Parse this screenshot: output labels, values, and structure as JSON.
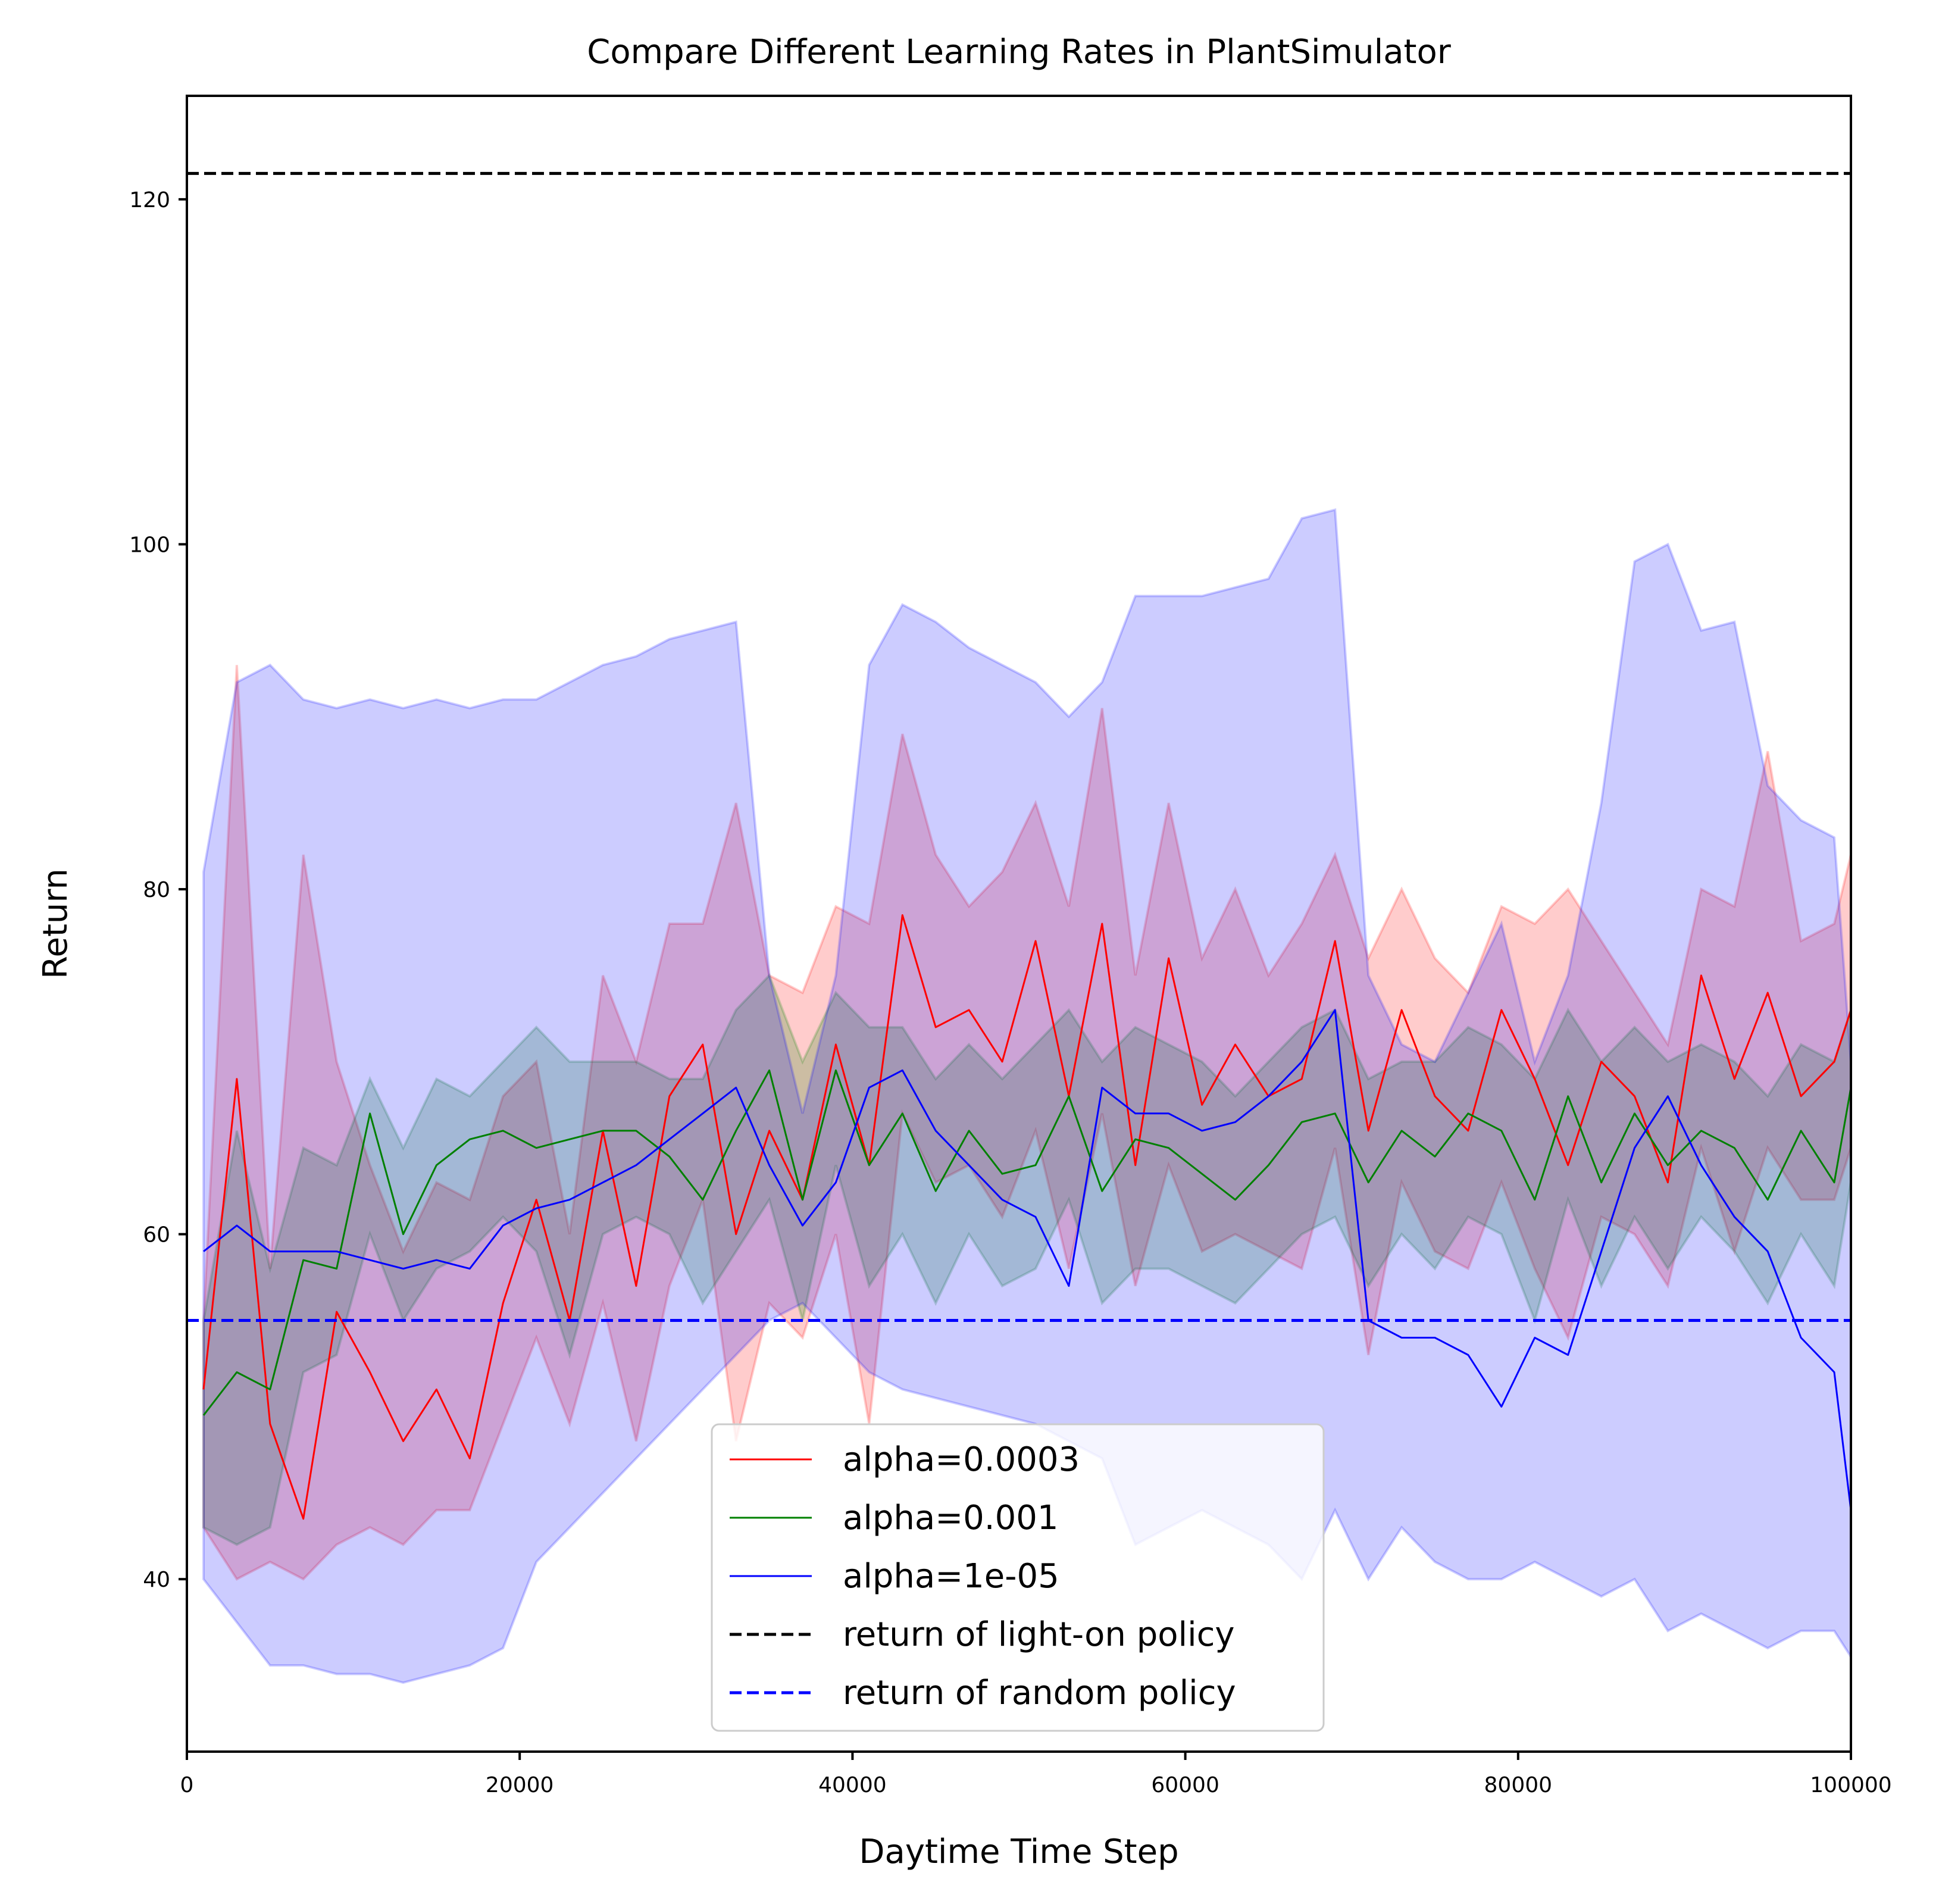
{
  "chart_data": {
    "type": "line",
    "title": "Compare Different Learning Rates in PlantSimulator",
    "xlabel": "Daytime Time Step",
    "ylabel": "Return",
    "xlim": [
      0,
      100000
    ],
    "ylim": [
      30,
      126
    ],
    "x_ticks": [
      0,
      20000,
      40000,
      60000,
      80000,
      100000
    ],
    "x_tick_labels": [
      "0",
      "20000",
      "40000",
      "60000",
      "80000",
      "100000"
    ],
    "y_ticks": [
      40,
      60,
      80,
      100,
      120
    ],
    "y_tick_labels": [
      "40",
      "60",
      "80",
      "100",
      "120"
    ],
    "grid": false,
    "legend_position": "lower center",
    "x": [
      1000,
      3000,
      5000,
      7000,
      9000,
      11000,
      13000,
      15000,
      17000,
      19000,
      21000,
      23000,
      25000,
      27000,
      29000,
      31000,
      33000,
      35000,
      37000,
      39000,
      41000,
      43000,
      45000,
      47000,
      49000,
      51000,
      53000,
      55000,
      57000,
      59000,
      61000,
      63000,
      65000,
      67000,
      69000,
      71000,
      73000,
      75000,
      77000,
      79000,
      81000,
      83000,
      85000,
      87000,
      89000,
      91000,
      93000,
      95000,
      97000,
      99000,
      100000
    ],
    "series": [
      {
        "name": "alpha=0.0003",
        "color": "#ff0000",
        "values": [
          51,
          69,
          49,
          43.5,
          55.5,
          52,
          48,
          51,
          47,
          56,
          62,
          55,
          66,
          57,
          68,
          71,
          60,
          66,
          62,
          71,
          64,
          78.5,
          72,
          73,
          70,
          77,
          68,
          78,
          64,
          76,
          67.5,
          71,
          68,
          69,
          77,
          66,
          73,
          68,
          66,
          73,
          69,
          64,
          70,
          68,
          63,
          75,
          69,
          74,
          68,
          70,
          73
        ],
        "upper": [
          55,
          93,
          58,
          82,
          70,
          64,
          59,
          63,
          62,
          68,
          70,
          60,
          75,
          70,
          78,
          78,
          85,
          75,
          74,
          79,
          78,
          89,
          82,
          79,
          81,
          85,
          79,
          90.5,
          75,
          85,
          76,
          80,
          75,
          78,
          82,
          76,
          80,
          76,
          74,
          79,
          78,
          80,
          77,
          74,
          71,
          80,
          79,
          88,
          77,
          78,
          82
        ],
        "lower": [
          43,
          40,
          41,
          40,
          42,
          43,
          42,
          44,
          44,
          49,
          54,
          49,
          56,
          48,
          57,
          62,
          48,
          56,
          54,
          60,
          49,
          67,
          63,
          64,
          61,
          66,
          58,
          67,
          57,
          64,
          59,
          60,
          59,
          58,
          65,
          53,
          63,
          59,
          58,
          63,
          58,
          54,
          61,
          60,
          57,
          65,
          59,
          65,
          62,
          62,
          65
        ]
      },
      {
        "name": "alpha=0.001",
        "color": "#008000",
        "values": [
          49.5,
          52,
          51,
          58.5,
          58,
          67,
          60,
          64,
          65.5,
          66,
          65,
          65.5,
          66,
          66,
          64.5,
          62,
          66,
          69.5,
          62,
          69.5,
          64,
          67,
          62.5,
          66,
          63.5,
          64,
          68,
          62.5,
          65.5,
          65,
          63.5,
          62,
          64,
          66.5,
          67,
          63,
          66,
          64.5,
          67,
          66,
          62,
          68,
          63,
          67,
          64,
          66,
          65,
          62,
          66,
          63,
          68.5
        ],
        "upper": [
          55,
          66,
          58,
          65,
          64,
          69,
          65,
          69,
          68,
          70,
          72,
          70,
          70,
          70,
          69,
          69,
          73,
          75,
          70,
          74,
          72,
          72,
          69,
          71,
          69,
          71,
          73,
          70,
          72,
          71,
          70,
          68,
          70,
          72,
          73,
          69,
          70,
          70,
          72,
          71,
          69,
          73,
          70,
          72,
          70,
          71,
          70,
          68,
          71,
          70,
          73
        ],
        "lower": [
          43,
          42,
          43,
          52,
          53,
          60,
          55,
          58,
          59,
          61,
          59,
          53,
          60,
          61,
          60,
          56,
          59,
          62,
          55,
          64,
          57,
          60,
          56,
          60,
          57,
          58,
          62,
          56,
          58,
          58,
          57,
          56,
          58,
          60,
          61,
          57,
          60,
          58,
          61,
          60,
          55,
          62,
          57,
          61,
          58,
          61,
          59,
          56,
          60,
          57,
          63
        ]
      },
      {
        "name": "alpha=1e-05",
        "color": "#0000ff",
        "values": [
          59,
          60.5,
          59,
          59,
          59,
          58.5,
          58,
          58.5,
          58,
          60.5,
          61.5,
          62,
          63,
          64,
          65.5,
          67,
          68.5,
          64,
          60.5,
          63,
          68.5,
          69.5,
          66,
          64,
          62,
          61,
          57,
          68.5,
          67,
          67,
          66,
          66.5,
          68,
          70,
          73,
          55,
          54,
          54,
          53,
          50,
          54,
          53,
          59,
          65,
          68,
          64,
          61,
          59,
          54,
          52,
          44
        ],
        "upper": [
          81,
          92,
          93,
          91,
          90.5,
          91,
          90.5,
          91,
          90.5,
          91,
          91,
          92,
          93,
          93.5,
          94.5,
          95,
          95.5,
          75,
          67,
          75,
          93,
          96.5,
          95.5,
          94,
          93,
          92,
          90,
          92,
          97,
          97,
          97,
          97.5,
          98,
          101.5,
          102,
          75,
          71,
          70,
          74,
          78,
          70,
          75,
          85,
          99,
          100,
          95,
          95.5,
          86,
          84,
          83,
          70
        ],
        "lower": [
          40,
          37.5,
          35,
          35,
          34.5,
          34.5,
          34,
          34.5,
          35,
          36,
          41,
          43,
          45,
          47,
          49,
          51,
          53,
          55,
          56,
          54,
          52,
          51,
          50.5,
          50,
          49.5,
          49,
          48,
          47,
          42,
          43,
          44,
          43,
          42,
          40,
          44,
          40,
          43,
          41,
          40,
          40,
          41,
          40,
          39,
          40,
          37,
          38,
          37,
          36,
          37,
          37,
          35.5
        ]
      }
    ],
    "reference_lines": [
      {
        "name": "return of light-on policy",
        "y": 121.5,
        "color": "#000000",
        "style": "dashed"
      },
      {
        "name": "return of random policy",
        "y": 55,
        "color": "#0000ff",
        "style": "dashed"
      }
    ]
  }
}
